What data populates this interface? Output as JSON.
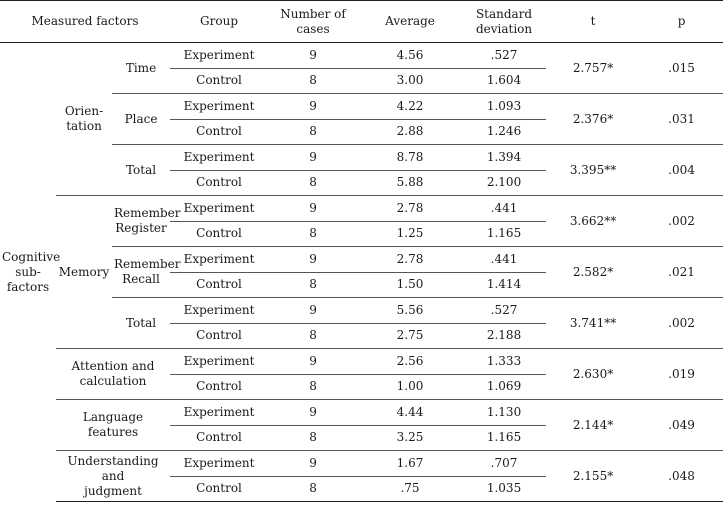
{
  "headers": {
    "measured_factors": "Measured  factors",
    "group": "Group",
    "n_line1": "Number  of",
    "n_line2": "cases",
    "average": "Average",
    "sd_line1": "Standard",
    "sd_line2": "deviation",
    "t": "t",
    "p": "p"
  },
  "labels": {
    "cognitive_1": "Cognitive",
    "cognitive_2": "sub-",
    "cognitive_3": "factors",
    "orientation_1": "Orien-",
    "orientation_2": "tation",
    "memory": "Memory",
    "time": "Time",
    "place": "Place",
    "total": "Total",
    "remember_register_1": "Remember",
    "remember_register_2": "Register",
    "remember_recall_1": "Remember",
    "remember_recall_2": "Recall",
    "attention_1": "Attention  and",
    "attention_2": "calculation",
    "language": "Language  features",
    "understanding_1": "Understanding  and",
    "understanding_2": "judgment"
  },
  "rows": [
    {
      "group": "Experiment",
      "n": "9",
      "avg": "4.56",
      "sd": ".527",
      "t": "2.757*",
      "p": ".015"
    },
    {
      "group": "Control",
      "n": "8",
      "avg": "3.00",
      "sd": "1.604"
    },
    {
      "group": "Experiment",
      "n": "9",
      "avg": "4.22",
      "sd": "1.093",
      "t": "2.376*",
      "p": ".031"
    },
    {
      "group": "Control",
      "n": "8",
      "avg": "2.88",
      "sd": "1.246"
    },
    {
      "group": "Experiment",
      "n": "9",
      "avg": "8.78",
      "sd": "1.394",
      "t": "3.395**",
      "p": ".004"
    },
    {
      "group": "Control",
      "n": "8",
      "avg": "5.88",
      "sd": "2.100"
    },
    {
      "group": "Experiment",
      "n": "9",
      "avg": "2.78",
      "sd": ".441",
      "t": "3.662**",
      "p": ".002"
    },
    {
      "group": "Control",
      "n": "8",
      "avg": "1.25",
      "sd": "1.165"
    },
    {
      "group": "Experiment",
      "n": "9",
      "avg": "2.78",
      "sd": ".441",
      "t": "2.582*",
      "p": ".021"
    },
    {
      "group": "Control",
      "n": "8",
      "avg": "1.50",
      "sd": "1.414"
    },
    {
      "group": "Experiment",
      "n": "9",
      "avg": "5.56",
      "sd": ".527",
      "t": "3.741**",
      "p": ".002"
    },
    {
      "group": "Control",
      "n": "8",
      "avg": "2.75",
      "sd": "2.188"
    },
    {
      "group": "Experiment",
      "n": "9",
      "avg": "2.56",
      "sd": "1.333",
      "t": "2.630*",
      "p": ".019"
    },
    {
      "group": "Control",
      "n": "8",
      "avg": "1.00",
      "sd": "1.069"
    },
    {
      "group": "Experiment",
      "n": "9",
      "avg": "4.44",
      "sd": "1.130",
      "t": "2.144*",
      "p": ".049"
    },
    {
      "group": "Control",
      "n": "8",
      "avg": "3.25",
      "sd": "1.165"
    },
    {
      "group": "Experiment",
      "n": "9",
      "avg": "1.67",
      "sd": ".707",
      "t": "2.155*",
      "p": ".048"
    },
    {
      "group": "Control",
      "n": "8",
      "avg": ".75",
      "sd": "1.035"
    }
  ]
}
